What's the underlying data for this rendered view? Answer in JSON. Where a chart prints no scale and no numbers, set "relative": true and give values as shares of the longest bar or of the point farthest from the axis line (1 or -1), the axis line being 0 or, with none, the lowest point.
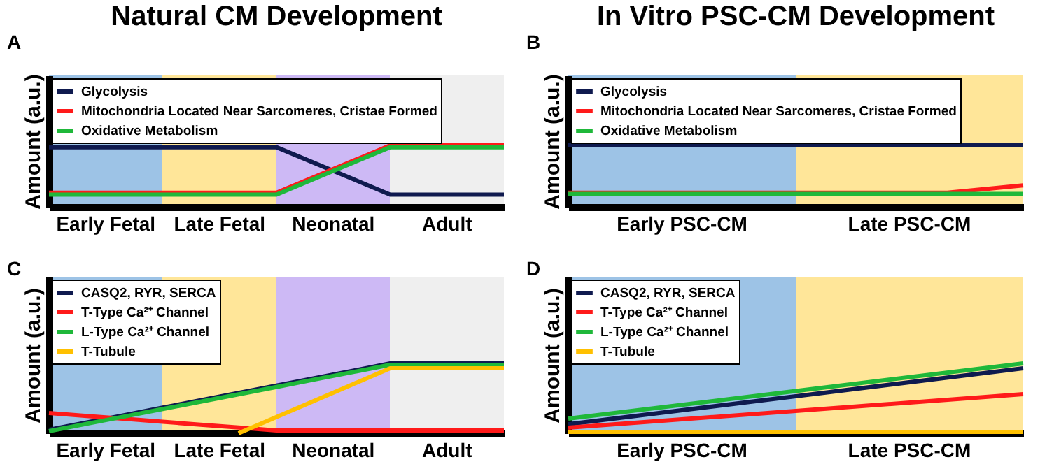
{
  "chart_data": [
    {
      "type": "line",
      "title": "Natural CM Development",
      "ylabel": "Amount (a.u.)",
      "annotations": [
        "A",
        "Early Fetal",
        "Late Fetal",
        "Neonatal",
        "Adult"
      ],
      "relative": true,
      "legend": "top left",
      "categories": [
        null,
        null,
        null,
        null,
        null
      ],
      "series": [
        {
          "name": "Glycolysis",
          "color": "#0f1a4f",
          "values": [
            0.97,
            0.97,
            0.97,
            0.2,
            0.2
          ]
        },
        {
          "name": "Mitochondria Located Near Sarcomeres, Cristae Formed",
          "color": "#ff1a1a",
          "values": [
            0.23,
            0.23,
            0.23,
            1,
            1
          ]
        },
        {
          "name": "Oxidative Metabolism",
          "color": "#1fb83a",
          "values": [
            0.2,
            0.2,
            0.2,
            0.97,
            0.97
          ]
        }
      ]
    },
    {
      "type": "line",
      "title": "In Vitro PSC-CM Development",
      "ylabel": "Amount (a.u.)",
      "annotations": [
        "B",
        "Early PSC-CM",
        "Late PSC-CM"
      ],
      "relative": true,
      "legend": "top left",
      "categories": [
        null,
        null,
        null,
        null,
        null,
        null,
        null
      ],
      "series": [
        {
          "name": "Glycolysis",
          "color": "#0f1a4f",
          "values": [
            1,
            1,
            1,
            1,
            1,
            1,
            1
          ]
        },
        {
          "name": "Mitochondria Located Near Sarcomeres, Cristae Formed",
          "color": "#ff1a1a",
          "values": [
            0.23,
            0.23,
            0.23,
            0.23,
            0.23,
            0.23,
            0.35
          ]
        },
        {
          "name": "Oxidative Metabolism",
          "color": "#1fb83a",
          "values": [
            0.21,
            0.21,
            0.21,
            0.21,
            0.21,
            0.21,
            0.21
          ]
        }
      ]
    },
    {
      "type": "line",
      "ylabel": "Amount (a.u.)",
      "annotations": [
        "C",
        "Early Fetal",
        "Late Fetal",
        "Neonatal",
        "Adult"
      ],
      "relative": true,
      "legend": "top left",
      "categories": [
        null,
        null,
        null,
        null,
        null,
        null,
        null,
        null,
        null,
        null,
        null,
        null,
        null
      ],
      "series": [
        {
          "name": "CASQ2, RYR, SERCA",
          "color": "#0f1a4f",
          "values": [
            0.05,
            0.156,
            0.261,
            0.367,
            0.472,
            0.578,
            0.683,
            0.789,
            0.894,
            1,
            1,
            1,
            1
          ]
        },
        {
          "name": "T-Type Ca²⁺ Channel",
          "color": "#ff1a1a",
          "values": [
            0.29,
            0.248,
            0.207,
            0.165,
            0.123,
            0.082,
            0.04,
            0.04,
            0.04,
            0.04,
            0.04,
            0.04,
            0.04
          ]
        },
        {
          "name": "L-Type Ca²⁺ Channel",
          "color": "#1fb83a",
          "values": [
            0.03,
            0.136,
            0.241,
            0.347,
            0.452,
            0.558,
            0.663,
            0.769,
            0.874,
            0.98,
            0.98,
            0.98,
            0.98
          ]
        },
        {
          "name": "T-Tubule",
          "color": "#ffc000",
          "values": [
            null,
            null,
            null,
            null,
            null,
            0,
            0.233,
            0.465,
            0.698,
            0.93,
            0.93,
            0.93,
            0.93
          ]
        }
      ]
    },
    {
      "type": "line",
      "ylabel": "Amount (a.u.)",
      "annotations": [
        "D",
        "Early PSC-CM",
        "Late PSC-CM"
      ],
      "relative": true,
      "legend": "top left",
      "categories": [
        null,
        null,
        null
      ],
      "series": [
        {
          "name": "CASQ2, RYR, SERCA",
          "color": "#0f1a4f",
          "values": [
            0.13,
            0.53,
            0.93
          ]
        },
        {
          "name": "T-Type Ca²⁺ Channel",
          "color": "#ff1a1a",
          "values": [
            0.08,
            0.32,
            0.56
          ]
        },
        {
          "name": "L-Type Ca²⁺ Channel",
          "color": "#1fb83a",
          "values": [
            0.21,
            0.605,
            1
          ]
        },
        {
          "name": "T-Tubule",
          "color": "#ffc000",
          "values": [
            0.02,
            0.02,
            0.02
          ]
        }
      ]
    }
  ]
}
